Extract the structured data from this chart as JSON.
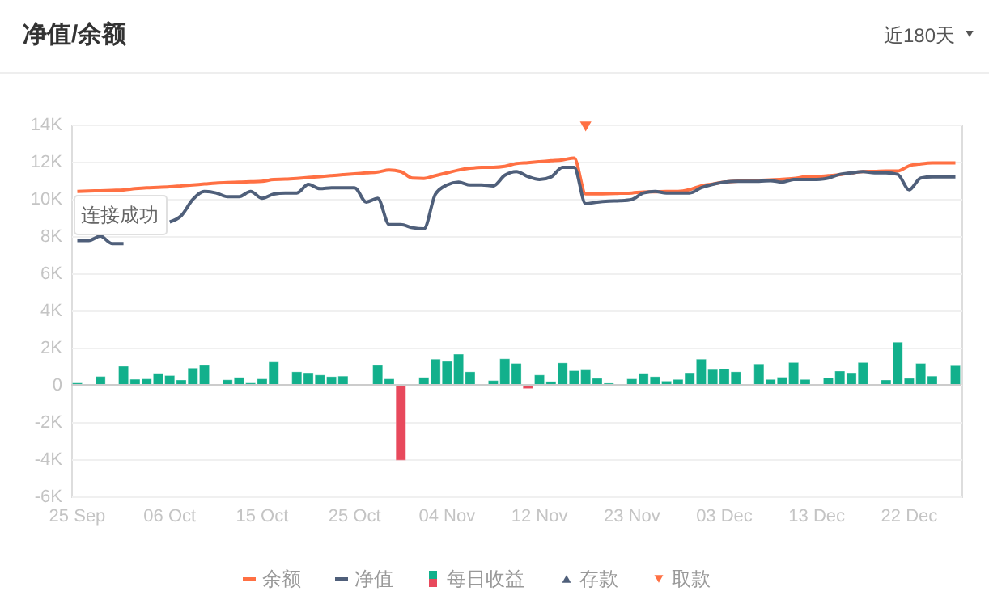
{
  "chart_data": {
    "type": "bar",
    "title": "净值/余额",
    "annotations": [
      "近180天",
      "连接成功"
    ],
    "categories": [
      "25 Sep",
      null,
      null,
      null,
      null,
      null,
      null,
      null,
      "06 Oct",
      null,
      null,
      null,
      null,
      null,
      null,
      null,
      "15 Oct",
      null,
      null,
      null,
      null,
      null,
      null,
      null,
      "25 Oct",
      null,
      null,
      null,
      null,
      null,
      null,
      null,
      "04 Nov",
      null,
      null,
      null,
      null,
      null,
      null,
      null,
      "12 Nov",
      null,
      null,
      null,
      null,
      null,
      null,
      null,
      "23 Nov",
      null,
      null,
      null,
      null,
      null,
      null,
      null,
      "03 Dec",
      null,
      null,
      null,
      null,
      null,
      null,
      null,
      "13 Dec",
      null,
      null,
      null,
      null,
      null,
      null,
      null,
      "22 Dec",
      null,
      null,
      null,
      null
    ],
    "series": [
      {
        "name": "余额",
        "type": "line",
        "color": "#ff7043",
        "values": [
          10400,
          10420,
          10440,
          10460,
          10480,
          10550,
          10600,
          10620,
          10650,
          10700,
          10750,
          10800,
          10850,
          10880,
          10900,
          10920,
          10950,
          11040,
          11060,
          11100,
          11150,
          11200,
          11250,
          11300,
          11350,
          11400,
          11450,
          11550,
          11470,
          11120,
          11100,
          11250,
          11400,
          11550,
          11650,
          11700,
          11700,
          11750,
          11900,
          11950,
          12000,
          12050,
          12100,
          12200,
          10270,
          10270,
          10280,
          10300,
          10320,
          10370,
          10380,
          10400,
          10400,
          10500,
          10700,
          10800,
          10900,
          10950,
          10980,
          11000,
          11020,
          11050,
          11100,
          11180,
          11200,
          11250,
          11300,
          11400,
          11470,
          11480,
          11500,
          11500,
          11780,
          11880,
          11930,
          11930,
          11930
        ]
      },
      {
        "name": "净值",
        "type": "line",
        "color": "#4f5f7a",
        "values": [
          7760,
          7760,
          8000,
          7600,
          7600,
          null,
          null,
          null,
          8760,
          9100,
          9970,
          10400,
          10320,
          10120,
          10120,
          10400,
          10030,
          10260,
          10320,
          10320,
          10780,
          10550,
          10600,
          10600,
          10600,
          9830,
          10030,
          8620,
          8620,
          8450,
          8390,
          10260,
          10750,
          10900,
          10750,
          10750,
          10700,
          11270,
          11470,
          11200,
          11040,
          11180,
          11700,
          11700,
          9740,
          9830,
          9880,
          9900,
          9970,
          10320,
          10400,
          10320,
          10320,
          10320,
          10600,
          10780,
          10900,
          10950,
          10950,
          10950,
          10980,
          10900,
          11040,
          11040,
          11040,
          11120,
          11320,
          11400,
          11470,
          11400,
          11400,
          11320,
          10490,
          11120,
          11180,
          11180,
          11180
        ]
      },
      {
        "name": "每日收益",
        "type": "bar",
        "color": "#12b08c",
        "values": [
          100,
          null,
          450,
          null,
          1000,
          300,
          320,
          620,
          500,
          260,
          900,
          1050,
          null,
          270,
          400,
          100,
          320,
          1230,
          null,
          700,
          650,
          530,
          440,
          470,
          null,
          null,
          1050,
          320,
          -4050,
          null,
          400,
          1380,
          1260,
          1650,
          700,
          null,
          230,
          1400,
          1150,
          -200,
          530,
          180,
          1180,
          760,
          800,
          350,
          90,
          null,
          320,
          620,
          440,
          200,
          290,
          650,
          1380,
          820,
          850,
          700,
          null,
          1120,
          290,
          410,
          1200,
          290,
          null,
          380,
          740,
          650,
          1200,
          null,
          260,
          2290,
          350,
          1150,
          470,
          null,
          1030
        ],
        "colors": [
          "#12b08c",
          null,
          "#12b08c",
          null,
          "#12b08c",
          "#12b08c",
          "#12b08c",
          "#12b08c",
          "#12b08c",
          "#12b08c",
          "#12b08c",
          "#12b08c",
          null,
          "#12b08c",
          "#12b08c",
          "#12b08c",
          "#12b08c",
          "#12b08c",
          null,
          "#12b08c",
          "#12b08c",
          "#12b08c",
          "#12b08c",
          "#12b08c",
          null,
          null,
          "#12b08c",
          "#12b08c",
          "#e8495c",
          null,
          "#12b08c",
          "#12b08c",
          "#12b08c",
          "#12b08c",
          "#12b08c",
          null,
          "#12b08c",
          "#12b08c",
          "#12b08c",
          "#e8495c",
          "#12b08c",
          "#12b08c",
          "#12b08c",
          "#12b08c",
          "#12b08c",
          "#12b08c",
          "#12b08c",
          null,
          "#12b08c",
          "#12b08c",
          "#12b08c",
          "#12b08c",
          "#12b08c",
          "#12b08c",
          "#12b08c",
          "#12b08c",
          "#12b08c",
          "#12b08c",
          null,
          "#12b08c",
          "#12b08c",
          "#12b08c",
          "#12b08c",
          "#12b08c",
          null,
          "#12b08c",
          "#12b08c",
          "#12b08c",
          "#12b08c",
          null,
          "#12b08c",
          "#12b08c",
          "#12b08c",
          "#12b08c",
          "#12b08c",
          null,
          "#12b08c"
        ]
      },
      {
        "name": "存款",
        "type": "scatter",
        "marker": "triangle",
        "color": "#4f5f7a",
        "values": [
          null,
          null,
          null,
          null,
          null,
          null,
          null,
          null,
          null,
          null,
          null,
          null,
          null,
          null,
          null,
          null,
          null,
          null,
          null,
          null,
          null,
          null,
          null,
          null,
          null,
          null,
          null,
          null,
          null,
          null,
          null,
          null,
          null,
          null,
          null,
          null,
          null,
          null,
          null,
          null,
          null,
          null,
          null,
          null,
          null,
          null,
          null,
          null,
          null,
          null,
          null,
          null,
          null,
          null,
          null,
          null,
          null,
          null,
          null,
          null,
          null,
          null,
          null,
          null,
          null,
          null,
          null,
          null,
          null,
          null,
          null,
          null,
          null,
          null,
          null,
          null,
          null
        ]
      },
      {
        "name": "取款",
        "type": "scatter",
        "marker": "triangle-down",
        "color": "#ff7043",
        "values": [
          null,
          null,
          null,
          null,
          null,
          null,
          null,
          null,
          null,
          null,
          null,
          null,
          null,
          null,
          null,
          null,
          null,
          null,
          null,
          null,
          null,
          null,
          null,
          null,
          null,
          null,
          null,
          null,
          null,
          null,
          null,
          null,
          null,
          null,
          null,
          null,
          null,
          null,
          null,
          null,
          null,
          null,
          null,
          null,
          13900,
          null,
          null,
          null,
          null,
          null,
          null,
          null,
          null,
          null,
          null,
          null,
          null,
          null,
          null,
          null,
          null,
          null,
          null,
          null,
          null,
          null,
          null,
          null,
          null,
          null,
          null,
          null,
          null,
          null,
          null,
          null,
          null
        ]
      }
    ],
    "ylim": [
      -6000,
      14000
    ],
    "yticks": [
      {
        "value": -6000,
        "label": "-6K"
      },
      {
        "value": -4000,
        "label": "-4K"
      },
      {
        "value": -2000,
        "label": "-2K"
      },
      0,
      {
        "value": 2000,
        "label": "2K"
      },
      {
        "value": 4000,
        "label": "4K"
      },
      {
        "value": 6000,
        "label": "6K"
      },
      {
        "value": 8000,
        "label": "8K"
      },
      {
        "value": 10000,
        "label": "10K"
      },
      {
        "value": 12000,
        "label": "12K"
      },
      {
        "value": 14000,
        "label": "14K"
      }
    ],
    "grid": "y",
    "legend": "bottom"
  }
}
